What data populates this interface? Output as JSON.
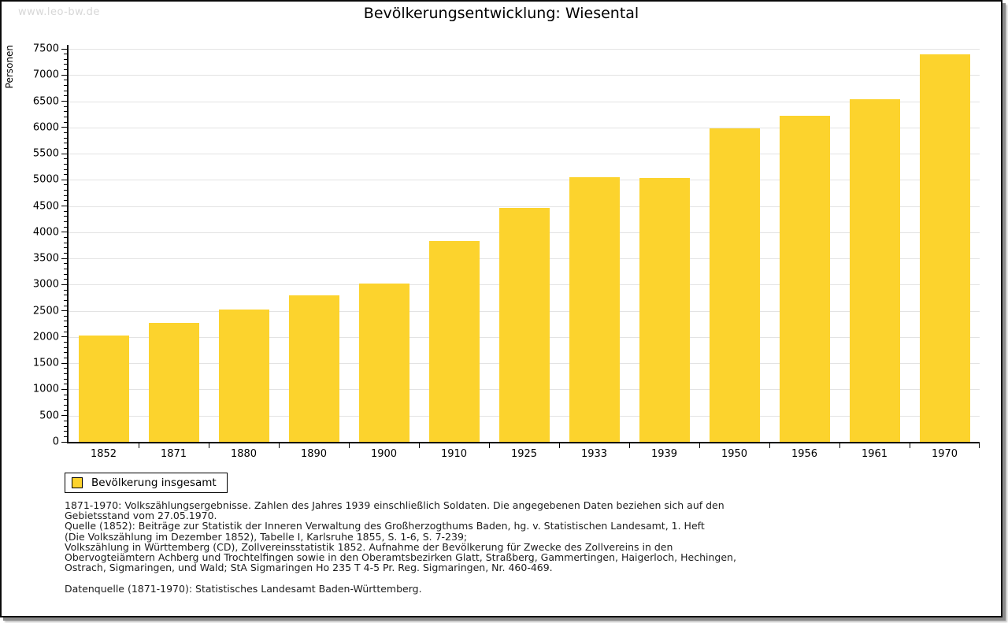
{
  "page": {
    "watermark": "www.leo-bw.de"
  },
  "chart_data": {
    "type": "bar",
    "title": "Bevölkerungsentwicklung: Wiesental",
    "xlabel": "",
    "ylabel": "Personen",
    "categories": [
      "1852",
      "1871",
      "1880",
      "1890",
      "1900",
      "1910",
      "1925",
      "1933",
      "1939",
      "1950",
      "1956",
      "1961",
      "1970"
    ],
    "values": [
      2030,
      2270,
      2530,
      2790,
      3020,
      3840,
      4460,
      5050,
      5030,
      5980,
      6220,
      6540,
      7390
    ],
    "ylim": [
      0,
      7500
    ],
    "ytick_step": 500,
    "minor_tick_step": 100,
    "grid": true,
    "bar_color": "#fcd32d",
    "legend_position": "bottom-left"
  },
  "legend": {
    "label": "Bevölkerung insgesamt"
  },
  "footnotes": {
    "lines": [
      "1871-1970: Volkszählungsergebnisse. Zahlen des Jahres 1939 einschließlich Soldaten. Die angegebenen Daten beziehen sich auf den",
      "Gebietsstand vom 27.05.1970.",
      "Quelle (1852): Beiträge zur Statistik der Inneren Verwaltung des Großherzogthums Baden, hg. v. Statistischen Landesamt, 1. Heft",
      "(Die Volkszählung im Dezember 1852), Tabelle I, Karlsruhe 1855, S. 1-6, S. 7-239;",
      "Volkszählung in Württemberg (CD), Zollvereinsstatistik 1852. Aufnahme der Bevölkerung für Zwecke des Zollvereins in den",
      "Obervogteiämtern Achberg und Trochtelfingen sowie in den Oberamtsbezirken Glatt, Straßberg, Gammertingen, Haigerloch, Hechingen,",
      "Ostrach, Sigmaringen, und Wald; StA Sigmaringen Ho 235 T 4-5 Pr. Reg. Sigmaringen, Nr. 460-469.",
      "",
      "Datenquelle (1871-1970): Statistisches Landesamt Baden-Württemberg."
    ]
  }
}
